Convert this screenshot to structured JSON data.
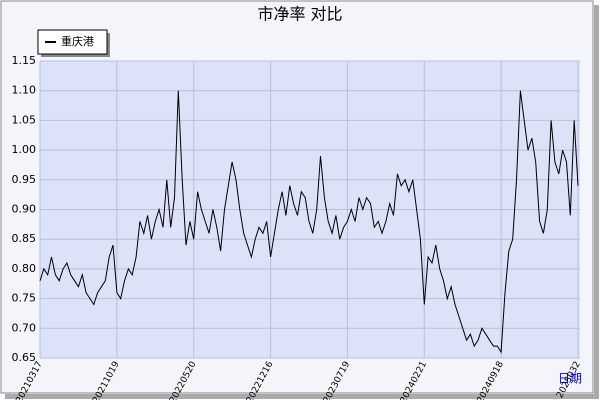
{
  "chart_data": {
    "type": "line",
    "title": "市净率 对比",
    "x_label": "日期",
    "categories": [
      "20210317",
      null,
      null,
      null,
      null,
      null,
      null,
      null,
      null,
      null,
      null,
      null,
      null,
      null,
      null,
      null,
      null,
      null,
      null,
      null,
      "20211019",
      null,
      null,
      null,
      null,
      null,
      null,
      null,
      null,
      null,
      null,
      null,
      null,
      null,
      null,
      null,
      null,
      null,
      null,
      null,
      "20220520",
      null,
      null,
      null,
      null,
      null,
      null,
      null,
      null,
      null,
      null,
      null,
      null,
      null,
      null,
      null,
      null,
      null,
      null,
      null,
      "20221216",
      null,
      null,
      null,
      null,
      null,
      null,
      null,
      null,
      null,
      null,
      null,
      null,
      null,
      null,
      null,
      null,
      null,
      null,
      null,
      "20230719",
      null,
      null,
      null,
      null,
      null,
      null,
      null,
      null,
      null,
      null,
      null,
      null,
      null,
      null,
      null,
      null,
      null,
      null,
      null,
      "20240221",
      null,
      null,
      null,
      null,
      null,
      null,
      null,
      null,
      null,
      null,
      null,
      null,
      null,
      null,
      null,
      null,
      null,
      null,
      null,
      "20240918",
      null,
      null,
      null,
      null,
      null,
      null,
      null,
      null,
      null,
      null,
      null,
      null,
      null,
      null,
      null,
      null,
      null,
      null,
      null,
      "2025032"
    ],
    "series": [
      {
        "name": "重庆港",
        "color": "#000000",
        "values": [
          0.78,
          0.8,
          0.79,
          0.82,
          0.79,
          0.78,
          0.8,
          0.81,
          0.79,
          0.78,
          0.77,
          0.79,
          0.76,
          0.75,
          0.74,
          0.76,
          0.77,
          0.78,
          0.82,
          0.84,
          0.76,
          0.75,
          0.78,
          0.8,
          0.79,
          0.82,
          0.88,
          0.86,
          0.89,
          0.85,
          0.88,
          0.9,
          0.87,
          0.95,
          0.87,
          0.92,
          1.1,
          0.95,
          0.84,
          0.88,
          0.85,
          0.93,
          0.9,
          0.88,
          0.86,
          0.9,
          0.87,
          0.83,
          0.9,
          0.94,
          0.98,
          0.95,
          0.9,
          0.86,
          0.84,
          0.82,
          0.85,
          0.87,
          0.86,
          0.88,
          0.82,
          0.86,
          0.9,
          0.93,
          0.89,
          0.94,
          0.91,
          0.89,
          0.93,
          0.92,
          0.88,
          0.86,
          0.9,
          0.99,
          0.92,
          0.88,
          0.86,
          0.89,
          0.85,
          0.87,
          0.88,
          0.9,
          0.88,
          0.92,
          0.9,
          0.92,
          0.91,
          0.87,
          0.88,
          0.86,
          0.88,
          0.91,
          0.89,
          0.96,
          0.94,
          0.95,
          0.93,
          0.95,
          0.9,
          0.85,
          0.74,
          0.82,
          0.81,
          0.84,
          0.8,
          0.78,
          0.75,
          0.77,
          0.74,
          0.72,
          0.7,
          0.68,
          0.69,
          0.67,
          0.68,
          0.7,
          0.69,
          0.68,
          0.67,
          0.67,
          0.66,
          0.76,
          0.83,
          0.85,
          0.95,
          1.1,
          1.05,
          1.0,
          1.02,
          0.98,
          0.88,
          0.86,
          0.9,
          1.05,
          0.98,
          0.96,
          1.0,
          0.98,
          0.89,
          1.05,
          0.94
        ]
      }
    ],
    "ylim": [
      0.65,
      1.15
    ],
    "yticks": [
      0.65,
      {
        "value": 0.7,
        "label": "0.70"
      },
      0.75,
      {
        "value": 0.8,
        "label": "0.80"
      },
      0.85,
      {
        "value": 0.9,
        "label": "0.90"
      },
      0.95,
      {
        "value": 1.0,
        "label": "1.00"
      },
      1.05,
      {
        "value": 1.1,
        "label": "1.10"
      },
      1.15
    ],
    "grid": true
  }
}
